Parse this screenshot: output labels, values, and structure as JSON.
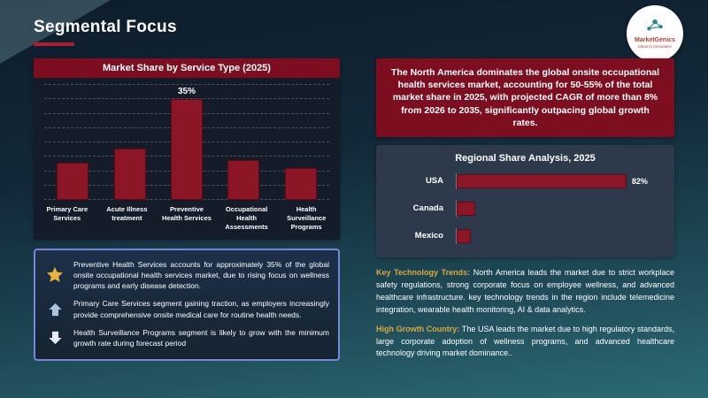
{
  "header": {
    "title": "Segmental Focus"
  },
  "logo": {
    "brand": "MarketGenics",
    "tagline": "Ideas to Innovation"
  },
  "highlight": {
    "text": "The North America dominates the global onsite occupational health services market, accounting for 50-55% of the total market share in 2025, with projected CAGR of more than 8% from 2026 to 2035, significantly outpacing global growth rates."
  },
  "chart_data": [
    {
      "id": "service_share",
      "type": "bar",
      "title": "Market Share by Service Type (2025)",
      "categories": [
        "Primary Care Services",
        "Acute Illness treatment",
        "Preventive Health Services",
        "Occupational Health Assessments",
        "Health Surveillance Programs"
      ],
      "values": [
        13,
        18,
        35,
        14,
        11
      ],
      "data_labels": [
        "",
        "",
        "35%",
        "",
        ""
      ],
      "ylim": [
        0,
        40
      ],
      "grid": "horizontal-dashed",
      "bar_color": "#8c1526"
    },
    {
      "id": "regional_share",
      "type": "bar",
      "orientation": "horizontal",
      "title": "Regional Share Analysis, 2025",
      "categories": [
        "USA",
        "Canada",
        "Mexico"
      ],
      "values": [
        82,
        9,
        7
      ],
      "data_labels": [
        "82%",
        "",
        ""
      ],
      "xlim": [
        0,
        100
      ],
      "grid": "off",
      "bar_color": "#8c1526"
    }
  ],
  "insights": [
    {
      "icon": "star-icon",
      "text": "Preventive Health Services accounts for approximately 35% of the global onsite occupational health services market, due to rising focus on wellness programs and early disease detection."
    },
    {
      "icon": "arrow-up-icon",
      "text": "Primary Care Services segment gaining traction, as employers increasingly provide comprehensive onsite medical care for routine health needs."
    },
    {
      "icon": "arrow-down-icon",
      "text": "Health Surveillance Programs segment is likely to grow with the minimum growth rate during forecast period"
    }
  ],
  "notes": [
    {
      "label": "Key Technology Trends:",
      "text": "North America leads the market due to strict workplace safety regulations, strong corporate focus on employee wellness, and advanced healthcare infrastructure. key technology trends in the region include telemedicine integration, wearable health monitoring, AI & data analytics."
    },
    {
      "label": "High Growth Country:",
      "text": "The USA leads the market due to high regulatory standards, large corporate adoption of wellness programs, and advanced healthcare technology driving market dominance.."
    }
  ],
  "colors": {
    "maroon_header": "#7c0e20",
    "bar_fill": "#8c1526",
    "gold_accent": "#d9a93d",
    "panel_border_blue": "#7487d8",
    "title_underline_red": "#b01e30",
    "background_top": "#0d1d2b",
    "background_bottom": "#2c6a74",
    "star_gold": "#e8b33c",
    "arrow_up_blue": "#a9c3e0",
    "arrow_down_white": "#e4ebf2"
  }
}
